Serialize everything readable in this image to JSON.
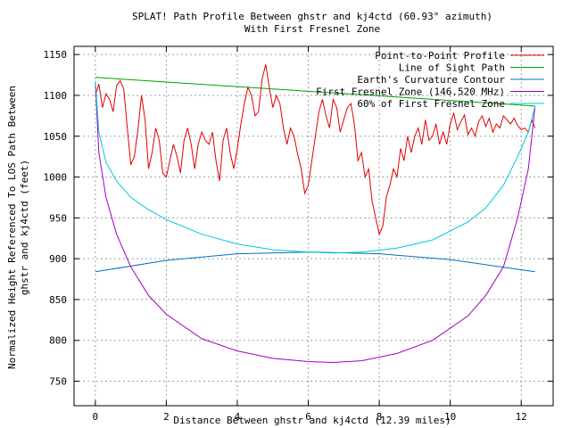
{
  "chart_data": {
    "type": "line",
    "title": "SPLAT! Path Profile Between ghstr and kj4ctd (60.93° azimuth)",
    "subtitle": "With First Fresnel Zone",
    "xlabel": "Distance Between ghstr and kj4ctd (12.39 miles)",
    "ylabel_line1": "Normalized Height Referenced To LOS Path Between",
    "ylabel_line2": "ghstr and kj4ctd (feet)",
    "xlim": [
      -0.6,
      12.9
    ],
    "ylim": [
      720,
      1160
    ],
    "xticks": [
      0,
      2,
      4,
      6,
      8,
      10,
      12
    ],
    "yticks": [
      750,
      800,
      850,
      900,
      950,
      1000,
      1050,
      1100,
      1150
    ],
    "grid": true,
    "legend_position": "top-right",
    "series": [
      {
        "name": "Point-to-Point Profile",
        "color": "#e00000",
        "x": [
          0.0,
          0.1,
          0.2,
          0.3,
          0.4,
          0.5,
          0.6,
          0.7,
          0.8,
          0.9,
          1.0,
          1.1,
          1.2,
          1.3,
          1.4,
          1.5,
          1.6,
          1.7,
          1.8,
          1.9,
          2.0,
          2.1,
          2.2,
          2.3,
          2.4,
          2.5,
          2.6,
          2.7,
          2.8,
          2.9,
          3.0,
          3.1,
          3.2,
          3.3,
          3.4,
          3.5,
          3.6,
          3.7,
          3.8,
          3.9,
          4.0,
          4.1,
          4.2,
          4.3,
          4.4,
          4.5,
          4.6,
          4.7,
          4.8,
          4.9,
          5.0,
          5.1,
          5.2,
          5.3,
          5.4,
          5.5,
          5.6,
          5.7,
          5.8,
          5.9,
          6.0,
          6.1,
          6.2,
          6.3,
          6.4,
          6.5,
          6.6,
          6.7,
          6.8,
          6.9,
          7.0,
          7.1,
          7.2,
          7.3,
          7.4,
          7.5,
          7.6,
          7.7,
          7.8,
          7.9,
          8.0,
          8.1,
          8.2,
          8.3,
          8.4,
          8.5,
          8.6,
          8.7,
          8.8,
          8.9,
          9.0,
          9.1,
          9.2,
          9.3,
          9.4,
          9.5,
          9.6,
          9.7,
          9.8,
          9.9,
          10.0,
          10.1,
          10.2,
          10.3,
          10.4,
          10.5,
          10.6,
          10.7,
          10.8,
          10.9,
          11.0,
          11.1,
          11.2,
          11.3,
          11.4,
          11.5,
          11.6,
          11.7,
          11.8,
          11.9,
          12.0,
          12.1,
          12.2,
          12.3,
          12.39
        ],
        "y": [
          1100,
          1114,
          1085,
          1102,
          1095,
          1080,
          1112,
          1118,
          1108,
          1060,
          1015,
          1025,
          1058,
          1100,
          1070,
          1010,
          1030,
          1060,
          1045,
          1005,
          1000,
          1020,
          1040,
          1025,
          1005,
          1045,
          1060,
          1040,
          1010,
          1040,
          1055,
          1045,
          1040,
          1055,
          1020,
          995,
          1045,
          1060,
          1030,
          1010,
          1035,
          1065,
          1090,
          1110,
          1100,
          1075,
          1080,
          1120,
          1138,
          1110,
          1085,
          1100,
          1090,
          1060,
          1040,
          1060,
          1050,
          1028,
          1010,
          980,
          990,
          1020,
          1050,
          1080,
          1095,
          1075,
          1060,
          1095,
          1085,
          1055,
          1070,
          1085,
          1090,
          1065,
          1020,
          1030,
          1000,
          1010,
          970,
          950,
          930,
          940,
          975,
          990,
          1010,
          1000,
          1035,
          1020,
          1050,
          1030,
          1050,
          1060,
          1040,
          1070,
          1045,
          1050,
          1065,
          1040,
          1055,
          1040,
          1065,
          1078,
          1058,
          1068,
          1076,
          1052,
          1060,
          1050,
          1068,
          1075,
          1062,
          1072,
          1055,
          1065,
          1060,
          1075,
          1070,
          1065,
          1072,
          1063,
          1058,
          1060,
          1055,
          1070,
          1060
        ]
      },
      {
        "name": "Line of Sight Path",
        "color": "#00a000",
        "x": [
          0,
          12.39
        ],
        "y": [
          1122,
          1087
        ]
      },
      {
        "name": "Earth's Curvature Contour",
        "color": "#0070c0",
        "x": [
          0,
          2,
          4,
          6,
          6.195,
          8,
          10,
          12.39
        ],
        "y": [
          884,
          898,
          906,
          908,
          908,
          906,
          899,
          884
        ]
      },
      {
        "name": "First Fresnel Zone (146.520 MHz)",
        "color": "#a000c0",
        "x": [
          0.0,
          0.1,
          0.3,
          0.6,
          1.0,
          1.5,
          2.0,
          3.0,
          4.0,
          5.0,
          6.0,
          6.7,
          7.5,
          8.5,
          9.5,
          10.5,
          11.0,
          11.5,
          11.9,
          12.2,
          12.39
        ],
        "y": [
          1115,
          1030,
          975,
          930,
          890,
          855,
          832,
          802,
          787,
          778,
          774,
          773,
          775,
          784,
          800,
          830,
          855,
          890,
          950,
          1010,
          1087
        ]
      },
      {
        "name": "60% of First Fresnel Zone",
        "color": "#00c8d8",
        "x": [
          0.0,
          0.1,
          0.3,
          0.6,
          1.0,
          1.5,
          2.0,
          3.0,
          4.0,
          5.0,
          6.0,
          6.7,
          7.5,
          8.5,
          9.5,
          10.5,
          11.0,
          11.5,
          11.9,
          12.2,
          12.39
        ],
        "y": [
          1118,
          1055,
          1018,
          995,
          975,
          960,
          948,
          930,
          918,
          911,
          908,
          907,
          908,
          913,
          923,
          945,
          962,
          990,
          1025,
          1055,
          1087
        ]
      }
    ]
  }
}
